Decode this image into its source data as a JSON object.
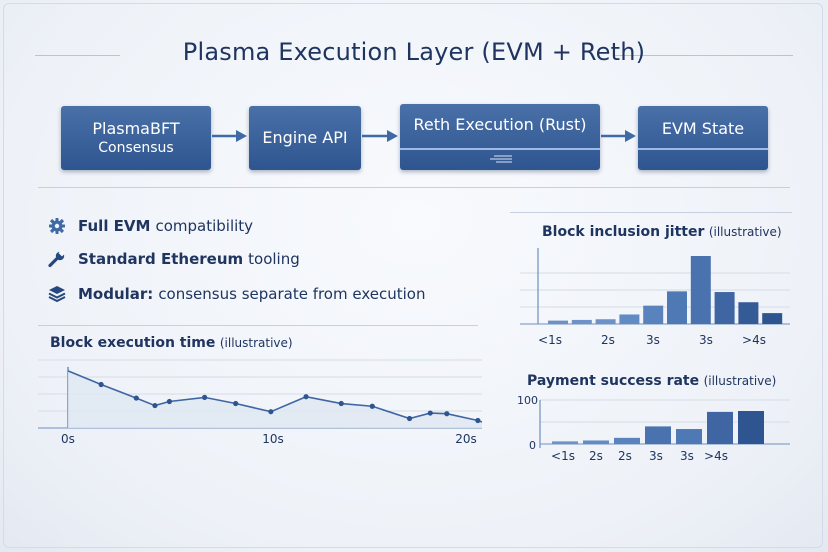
{
  "title": "Plasma Execution Layer (EVM + Reth)",
  "pipeline": [
    {
      "label": "PlasmaBFT",
      "sub": "Consensus"
    },
    {
      "label": "Engine API",
      "sub": ""
    },
    {
      "label": "Reth Execution (Rust)",
      "sub": ""
    },
    {
      "label": "EVM State",
      "sub": ""
    }
  ],
  "features": [
    {
      "icon": "gear-icon",
      "bold": "Full EVM",
      "text": "compatibility"
    },
    {
      "icon": "wrench-icon",
      "bold": "Standard Ethereum",
      "text": "tooling"
    },
    {
      "icon": "layers-icon",
      "bold": "Modular:",
      "text": "consensus separate from execution"
    }
  ],
  "chart_data": [
    {
      "type": "line",
      "title": "Block execution time",
      "title_note": "(illustrative)",
      "xticks": [
        "0s",
        "10s",
        "20s"
      ],
      "x": [
        0,
        1.6,
        3.3,
        4.2,
        4.9,
        6.6,
        8.1,
        9.8,
        11.5,
        13.2,
        14.7,
        16.5,
        17.5,
        18.3,
        19.8
      ],
      "y": [
        0.84,
        0.64,
        0.44,
        0.33,
        0.39,
        0.45,
        0.36,
        0.24,
        0.46,
        0.36,
        0.32,
        0.14,
        0.22,
        0.21,
        0.11
      ],
      "xlim": [
        0,
        20
      ],
      "ylim": [
        0,
        1
      ],
      "grid": true
    },
    {
      "type": "bar",
      "title": "Block inclusion jitter",
      "title_note": "(illustrative)",
      "tick_labels": [
        "<1s",
        "2s",
        "3s",
        "3s",
        ">4s"
      ],
      "values": [
        0.05,
        0.06,
        0.07,
        0.14,
        0.27,
        0.48,
        1.0,
        0.47,
        0.32,
        0.16
      ],
      "ylim": [
        0,
        1
      ],
      "grid": true
    },
    {
      "type": "bar",
      "title": "Payment success rate",
      "title_note": "(illustrative)",
      "yticks": [
        "100",
        "0"
      ],
      "tick_labels": [
        "<1s",
        "2s",
        "2s",
        "3s",
        "3s",
        ">4s"
      ],
      "values": [
        6,
        8,
        14,
        40,
        34,
        73,
        75
      ],
      "ylim": [
        0,
        100
      ],
      "grid": true
    }
  ]
}
